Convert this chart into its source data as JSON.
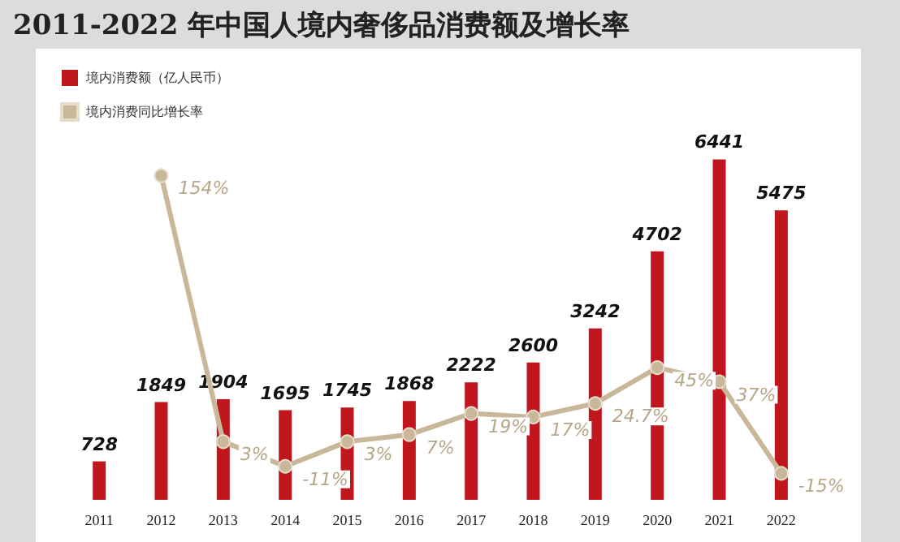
{
  "chart_data": {
    "type": "bar",
    "title": "2011-2022 年中国人境内奢侈品消费额及增长率",
    "categories": [
      "2011",
      "2012",
      "2013",
      "2014",
      "2015",
      "2016",
      "2017",
      "2018",
      "2019",
      "2020",
      "2021",
      "2022"
    ],
    "series": [
      {
        "name": "境内消费额（亿人民币）",
        "color": "#c0161e",
        "values": [
          728,
          1849,
          1904,
          1695,
          1745,
          1868,
          2222,
          2600,
          3242,
          4702,
          6441,
          5475
        ]
      },
      {
        "name": "境内消费同比增长率",
        "type": "line",
        "axis": "y2",
        "color": "#c9b79a",
        "marker": "circle",
        "values": [
          null,
          154,
          3,
          -11,
          3,
          7,
          19,
          17,
          24.7,
          45,
          37,
          -15
        ],
        "value_labels": [
          null,
          "154%",
          "3%",
          "-11%",
          "3%",
          "7%",
          "19%",
          "17%",
          "24.7%",
          "45%",
          "37%",
          "-15%"
        ]
      }
    ],
    "data_labels": true,
    "legend": "top left",
    "grid": false
  }
}
